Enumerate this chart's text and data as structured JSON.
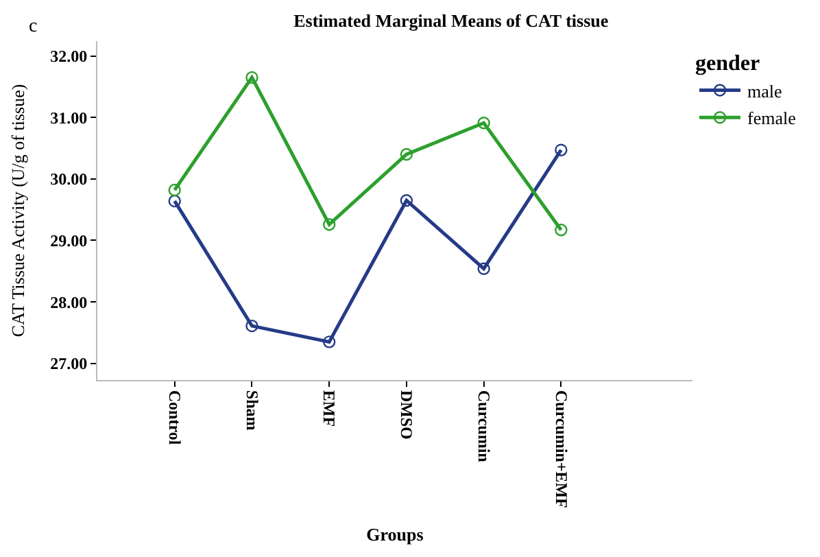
{
  "chart_data": {
    "type": "line",
    "title": "Estimated Marginal Means of CAT tissue",
    "xlabel": "Groups",
    "ylabel": "CAT Tissue Activity (U/g of tissue)",
    "legend_title": "gender",
    "annotations": [
      "c"
    ],
    "categories": [
      "Control",
      "Sham",
      "EMF",
      "DMSO",
      "Curcumin",
      "Curcumin+EMF"
    ],
    "series": [
      {
        "name": "male",
        "color": "#253b87",
        "values": [
          29.64,
          27.61,
          27.35,
          29.65,
          28.54,
          30.47
        ]
      },
      {
        "name": "female",
        "color": "#2ca02c",
        "values": [
          29.82,
          31.65,
          29.26,
          30.4,
          30.91,
          29.17
        ]
      }
    ],
    "ylim": [
      26.73,
      32.24
    ],
    "yticks": [
      {
        "value": 27,
        "label": "27.00"
      },
      {
        "value": 28,
        "label": "28.00"
      },
      {
        "value": 29,
        "label": "29.00"
      },
      {
        "value": 30,
        "label": "30.00"
      },
      {
        "value": 31,
        "label": "31.00"
      },
      {
        "value": 32,
        "label": "32.00"
      }
    ],
    "legend": "top right",
    "marker": "circle",
    "line_style": "solid"
  }
}
